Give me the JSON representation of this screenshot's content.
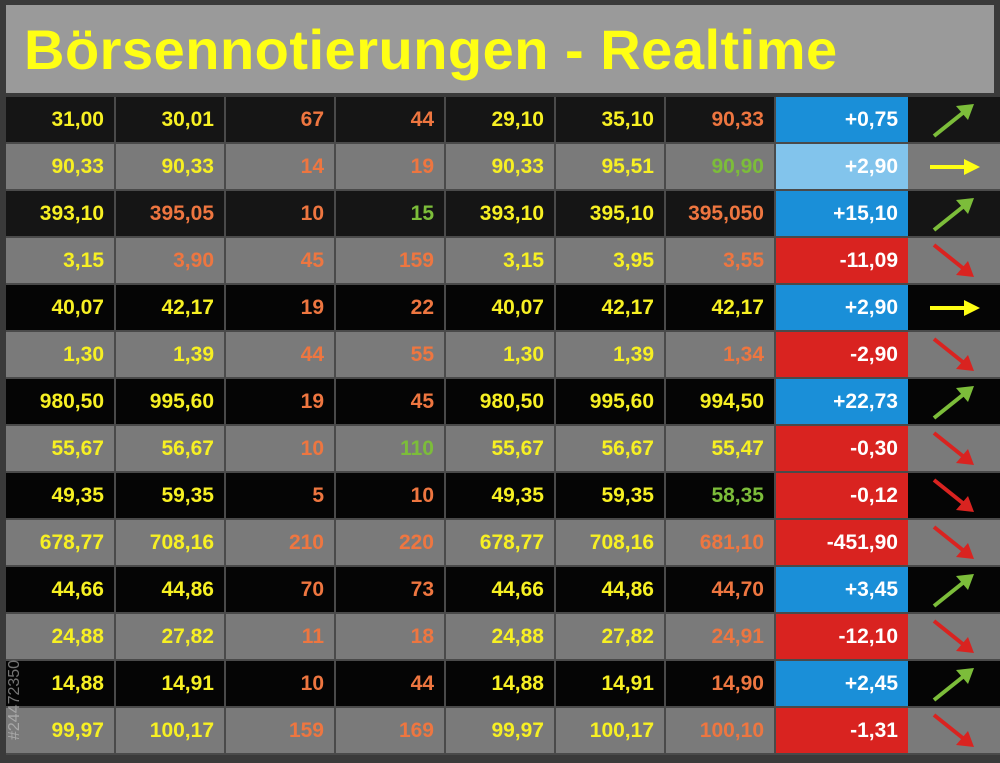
{
  "title": "Börsennotierungen - Realtime",
  "side_text": "#24472350",
  "colors": {
    "yellow": "#f7f023",
    "orange": "#ee7640",
    "green": "#7cbd3a",
    "up_blue": "#1a8fd8",
    "light_blue": "#82c4ec",
    "down_red": "#d92320"
  },
  "rows": [
    {
      "shade": "dark",
      "cells": [
        {
          "v": "31,00",
          "c": "yellow"
        },
        {
          "v": "30,01",
          "c": "yellow"
        },
        {
          "v": "67",
          "c": "orange"
        },
        {
          "v": "44",
          "c": "orange"
        },
        {
          "v": "29,10",
          "c": "yellow"
        },
        {
          "v": "35,10",
          "c": "yellow"
        },
        {
          "v": "90,33",
          "c": "orange"
        }
      ],
      "change": "+0,75",
      "change_bg": "up_blue",
      "arrow": "up"
    },
    {
      "shade": "light",
      "cells": [
        {
          "v": "90,33",
          "c": "yellow"
        },
        {
          "v": "90,33",
          "c": "yellow"
        },
        {
          "v": "14",
          "c": "orange"
        },
        {
          "v": "19",
          "c": "orange"
        },
        {
          "v": "90,33",
          "c": "yellow"
        },
        {
          "v": "95,51",
          "c": "yellow"
        },
        {
          "v": "90,90",
          "c": "green"
        }
      ],
      "change": "+2,90",
      "change_bg": "light_blue",
      "arrow": "right"
    },
    {
      "shade": "dark",
      "cells": [
        {
          "v": "393,10",
          "c": "yellow"
        },
        {
          "v": "395,05",
          "c": "orange"
        },
        {
          "v": "10",
          "c": "orange"
        },
        {
          "v": "15",
          "c": "green"
        },
        {
          "v": "393,10",
          "c": "yellow"
        },
        {
          "v": "395,10",
          "c": "yellow"
        },
        {
          "v": "395,050",
          "c": "orange"
        }
      ],
      "change": "+15,10",
      "change_bg": "up_blue",
      "arrow": "up"
    },
    {
      "shade": "light",
      "cells": [
        {
          "v": "3,15",
          "c": "yellow"
        },
        {
          "v": "3,90",
          "c": "orange"
        },
        {
          "v": "45",
          "c": "orange"
        },
        {
          "v": "159",
          "c": "orange"
        },
        {
          "v": "3,15",
          "c": "yellow"
        },
        {
          "v": "3,95",
          "c": "yellow"
        },
        {
          "v": "3,55",
          "c": "orange"
        }
      ],
      "change": "-11,09",
      "change_bg": "down_red",
      "arrow": "down"
    },
    {
      "shade": "black",
      "cells": [
        {
          "v": "40,07",
          "c": "yellow"
        },
        {
          "v": "42,17",
          "c": "yellow"
        },
        {
          "v": "19",
          "c": "orange"
        },
        {
          "v": "22",
          "c": "orange"
        },
        {
          "v": "40,07",
          "c": "yellow"
        },
        {
          "v": "42,17",
          "c": "yellow"
        },
        {
          "v": "42,17",
          "c": "yellow"
        }
      ],
      "change": "+2,90",
      "change_bg": "up_blue",
      "arrow": "right"
    },
    {
      "shade": "light",
      "cells": [
        {
          "v": "1,30",
          "c": "yellow"
        },
        {
          "v": "1,39",
          "c": "yellow"
        },
        {
          "v": "44",
          "c": "orange"
        },
        {
          "v": "55",
          "c": "orange"
        },
        {
          "v": "1,30",
          "c": "yellow"
        },
        {
          "v": "1,39",
          "c": "yellow"
        },
        {
          "v": "1,34",
          "c": "orange"
        }
      ],
      "change": "-2,90",
      "change_bg": "down_red",
      "arrow": "down"
    },
    {
      "shade": "black",
      "cells": [
        {
          "v": "980,50",
          "c": "yellow"
        },
        {
          "v": "995,60",
          "c": "yellow"
        },
        {
          "v": "19",
          "c": "orange"
        },
        {
          "v": "45",
          "c": "orange"
        },
        {
          "v": "980,50",
          "c": "yellow"
        },
        {
          "v": "995,60",
          "c": "yellow"
        },
        {
          "v": "994,50",
          "c": "yellow"
        }
      ],
      "change": "+22,73",
      "change_bg": "up_blue",
      "arrow": "up"
    },
    {
      "shade": "light",
      "cells": [
        {
          "v": "55,67",
          "c": "yellow"
        },
        {
          "v": "56,67",
          "c": "yellow"
        },
        {
          "v": "10",
          "c": "orange"
        },
        {
          "v": "110",
          "c": "green"
        },
        {
          "v": "55,67",
          "c": "yellow"
        },
        {
          "v": "56,67",
          "c": "yellow"
        },
        {
          "v": "55,47",
          "c": "yellow"
        }
      ],
      "change": "-0,30",
      "change_bg": "down_red",
      "arrow": "down"
    },
    {
      "shade": "black",
      "cells": [
        {
          "v": "49,35",
          "c": "yellow"
        },
        {
          "v": "59,35",
          "c": "yellow"
        },
        {
          "v": "5",
          "c": "orange"
        },
        {
          "v": "10",
          "c": "orange"
        },
        {
          "v": "49,35",
          "c": "yellow"
        },
        {
          "v": "59,35",
          "c": "yellow"
        },
        {
          "v": "58,35",
          "c": "green"
        }
      ],
      "change": "-0,12",
      "change_bg": "down_red",
      "arrow": "down"
    },
    {
      "shade": "light",
      "cells": [
        {
          "v": "678,77",
          "c": "yellow"
        },
        {
          "v": "708,16",
          "c": "yellow"
        },
        {
          "v": "210",
          "c": "orange"
        },
        {
          "v": "220",
          "c": "orange"
        },
        {
          "v": "678,77",
          "c": "yellow"
        },
        {
          "v": "708,16",
          "c": "yellow"
        },
        {
          "v": "681,10",
          "c": "orange"
        }
      ],
      "change": "-451,90",
      "change_bg": "down_red",
      "arrow": "down"
    },
    {
      "shade": "black",
      "cells": [
        {
          "v": "44,66",
          "c": "yellow"
        },
        {
          "v": "44,86",
          "c": "yellow"
        },
        {
          "v": "70",
          "c": "orange"
        },
        {
          "v": "73",
          "c": "orange"
        },
        {
          "v": "44,66",
          "c": "yellow"
        },
        {
          "v": "44,86",
          "c": "yellow"
        },
        {
          "v": "44,70",
          "c": "orange"
        }
      ],
      "change": "+3,45",
      "change_bg": "up_blue",
      "arrow": "up"
    },
    {
      "shade": "light",
      "cells": [
        {
          "v": "24,88",
          "c": "yellow"
        },
        {
          "v": "27,82",
          "c": "yellow"
        },
        {
          "v": "11",
          "c": "orange"
        },
        {
          "v": "18",
          "c": "orange"
        },
        {
          "v": "24,88",
          "c": "yellow"
        },
        {
          "v": "27,82",
          "c": "yellow"
        },
        {
          "v": "24,91",
          "c": "orange"
        }
      ],
      "change": "-12,10",
      "change_bg": "down_red",
      "arrow": "down"
    },
    {
      "shade": "black",
      "cells": [
        {
          "v": "14,88",
          "c": "yellow"
        },
        {
          "v": "14,91",
          "c": "yellow"
        },
        {
          "v": "10",
          "c": "orange"
        },
        {
          "v": "44",
          "c": "orange"
        },
        {
          "v": "14,88",
          "c": "yellow"
        },
        {
          "v": "14,91",
          "c": "yellow"
        },
        {
          "v": "14,90",
          "c": "orange"
        }
      ],
      "change": "+2,45",
      "change_bg": "up_blue",
      "arrow": "up"
    },
    {
      "shade": "light",
      "cells": [
        {
          "v": "99,97",
          "c": "yellow"
        },
        {
          "v": "100,17",
          "c": "yellow"
        },
        {
          "v": "159",
          "c": "orange"
        },
        {
          "v": "169",
          "c": "orange"
        },
        {
          "v": "99,97",
          "c": "yellow"
        },
        {
          "v": "100,17",
          "c": "yellow"
        },
        {
          "v": "100,10",
          "c": "orange"
        }
      ],
      "change": "-1,31",
      "change_bg": "down_red",
      "arrow": "down"
    }
  ]
}
